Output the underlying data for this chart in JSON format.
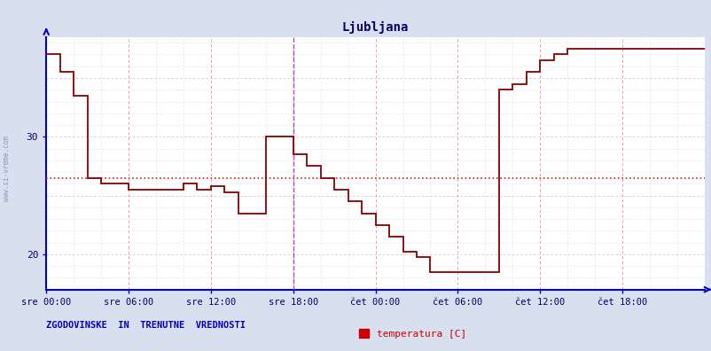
{
  "title": "Ljubljana",
  "xlabel_ticks": [
    "sre 00:00",
    "sre 06:00",
    "sre 12:00",
    "sre 18:00",
    "čet 00:00",
    "čet 06:00",
    "čet 12:00",
    "čet 18:00"
  ],
  "xlim": [
    0,
    288
  ],
  "ylim": [
    17.0,
    38.5
  ],
  "bg_color": "#d8e0f0",
  "plot_bg_color": "#ffffff",
  "line_color": "#880000",
  "vline_color": "#bb44bb",
  "hline_color": "#cc2222",
  "hline_dashed_y": 26.5,
  "vline_x": 108,
  "left_label": "www.si-vreme.com",
  "bottom_left_text": "ZGODOVINSKE  IN  TRENUTNE  VREDNOSTI",
  "legend_label": "temperatura [C]",
  "legend_color": "#cc0000",
  "title_color": "#000066",
  "axis_color": "#0000cc",
  "tick_color": "#000066",
  "temp_x": [
    0,
    6,
    6,
    12,
    12,
    18,
    18,
    24,
    24,
    36,
    36,
    60,
    60,
    66,
    66,
    72,
    72,
    78,
    78,
    84,
    84,
    96,
    96,
    108,
    108,
    114,
    114,
    120,
    120,
    126,
    126,
    132,
    132,
    138,
    138,
    144,
    144,
    150,
    150,
    156,
    156,
    162,
    162,
    168,
    168,
    174,
    174,
    198,
    198,
    204,
    204,
    210,
    210,
    216,
    216,
    222,
    222,
    228,
    228,
    288
  ],
  "temp_y": [
    37.0,
    37.0,
    35.5,
    35.5,
    33.5,
    33.5,
    26.5,
    26.5,
    26.0,
    26.0,
    25.5,
    25.5,
    26.0,
    26.0,
    25.5,
    25.5,
    25.8,
    25.8,
    25.3,
    25.3,
    23.5,
    23.5,
    30.0,
    30.0,
    28.5,
    28.5,
    27.5,
    27.5,
    26.5,
    26.5,
    25.5,
    25.5,
    24.5,
    24.5,
    23.5,
    23.5,
    22.5,
    22.5,
    21.5,
    21.5,
    20.2,
    20.2,
    19.8,
    19.8,
    18.5,
    18.5,
    18.5,
    18.5,
    34.0,
    34.0,
    34.5,
    34.5,
    35.5,
    35.5,
    36.5,
    36.5,
    37.0,
    37.0,
    37.5,
    37.5
  ]
}
